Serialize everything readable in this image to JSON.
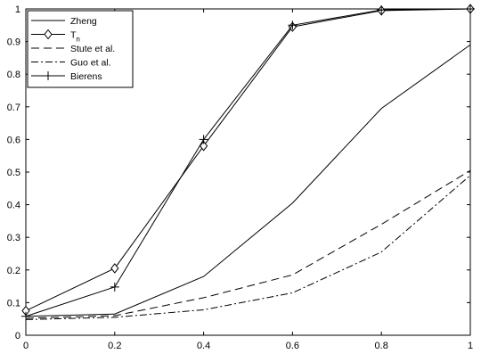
{
  "chart_data": {
    "type": "line",
    "title": "",
    "xlabel": "",
    "ylabel": "",
    "x": [
      0,
      0.2,
      0.4,
      0.6,
      0.8,
      1
    ],
    "xlim": [
      0,
      1
    ],
    "ylim": [
      0,
      1
    ],
    "xticks": [
      "0",
      "0.2",
      "0.4",
      "0.6",
      "0.8",
      "1"
    ],
    "yticks": [
      "0",
      "0.1",
      "0.2",
      "0.3",
      "0.4",
      "0.5",
      "0.6",
      "0.7",
      "0.8",
      "0.9",
      "1"
    ],
    "grid": false,
    "legend_position": "top-left",
    "series": [
      {
        "name": "Zheng",
        "line_style": "solid",
        "marker": "none",
        "values": [
          0.058,
          0.065,
          0.18,
          0.405,
          0.695,
          0.89
        ]
      },
      {
        "name": "T",
        "name_subscript": "n",
        "line_style": "solid",
        "marker": "diamond",
        "values": [
          0.075,
          0.205,
          0.58,
          0.945,
          0.995,
          1.0
        ]
      },
      {
        "name": "Stute et al.",
        "line_style": "dashed",
        "marker": "none",
        "values": [
          0.052,
          0.06,
          0.115,
          0.185,
          0.34,
          0.505
        ]
      },
      {
        "name": "Guo et al.",
        "line_style": "dashdot",
        "marker": "none",
        "values": [
          0.048,
          0.055,
          0.078,
          0.13,
          0.255,
          0.49
        ]
      },
      {
        "name": "Bierens",
        "line_style": "solid",
        "marker": "plus",
        "values": [
          0.058,
          0.148,
          0.6,
          0.95,
          0.997,
          1.0
        ]
      }
    ],
    "colors": {
      "line": "#000000",
      "background": "#ffffff",
      "axes": "#000000"
    }
  }
}
